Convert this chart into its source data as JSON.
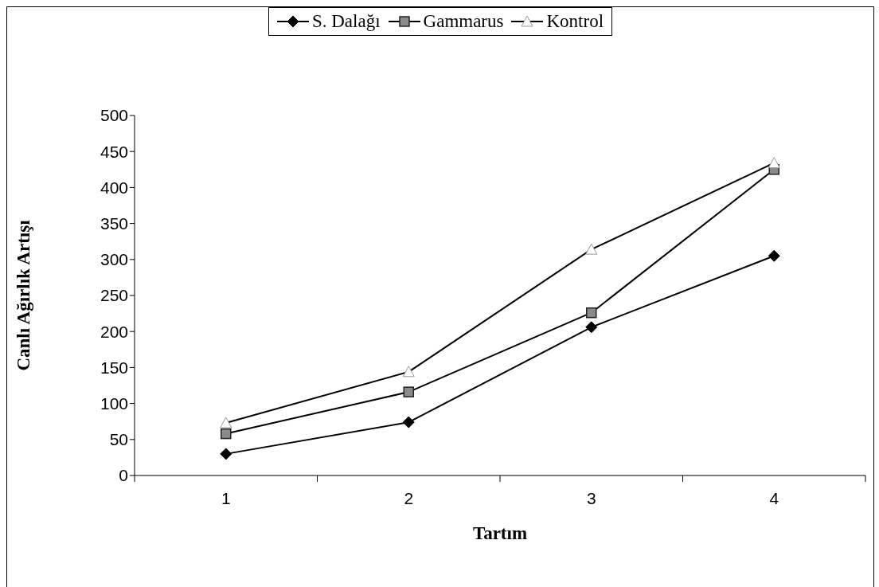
{
  "chart_data": {
    "type": "line",
    "xlabel": "Tartım",
    "ylabel": "Canlı Ağırlık Artışı",
    "categories": [
      "1",
      "2",
      "3",
      "4"
    ],
    "series": [
      {
        "name": "S. Dalağı",
        "color": "#000000",
        "marker": "diamond",
        "values": [
          30,
          74,
          206,
          305
        ]
      },
      {
        "name": "Gammarus",
        "color": "#000000",
        "marker": "square",
        "values": [
          58,
          116,
          226,
          425
        ]
      },
      {
        "name": "Kontrol",
        "color": "#000000",
        "marker": "triangle",
        "values": [
          73,
          144,
          314,
          434
        ]
      }
    ],
    "ylim": [
      0,
      500
    ],
    "yticks": [
      0,
      50,
      100,
      150,
      200,
      250,
      300,
      350,
      400,
      450,
      500
    ],
    "grid": false,
    "legend": "top"
  }
}
